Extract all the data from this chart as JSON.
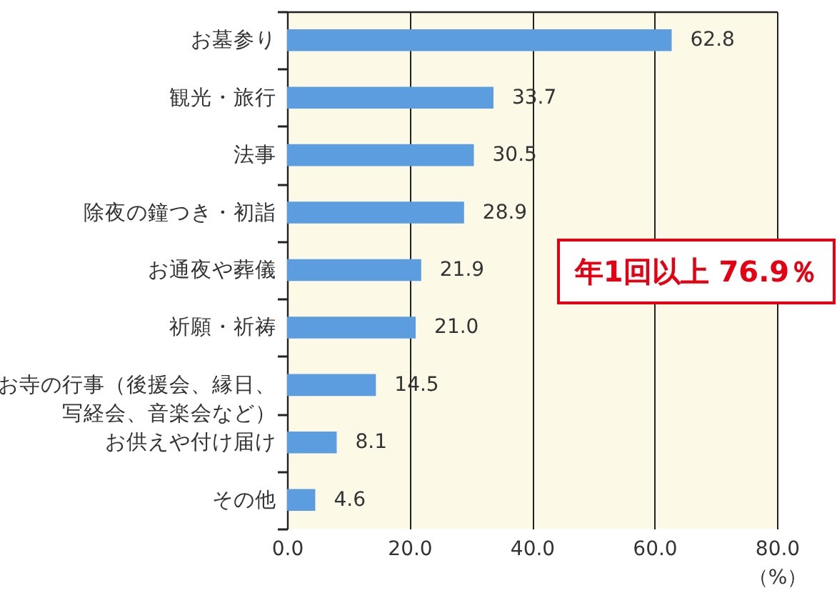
{
  "chart_data": {
    "type": "bar",
    "orientation": "horizontal",
    "categories": [
      "お墓参り",
      "観光・旅行",
      "法事",
      "除夜の鐘つき・初詣",
      "お通夜や葬儀",
      "祈願・祈祷",
      "お寺の行事（後援会、縁日、写経会、音楽会など）",
      "お供えや付け届け",
      "その他"
    ],
    "values": [
      62.8,
      33.7,
      30.5,
      28.9,
      21.9,
      21.0,
      14.5,
      8.1,
      4.6
    ],
    "value_labels": [
      "62.8",
      "33.7",
      "30.5",
      "28.9",
      "21.9",
      "21.0",
      "14.5",
      "8.1",
      "4.6"
    ],
    "color": "#5b9ddf",
    "xlim": [
      0,
      80
    ],
    "xticks": [
      {
        "value": 0,
        "label": "0.0"
      },
      {
        "value": 20,
        "label": "20.0"
      },
      {
        "value": 40,
        "label": "40.0"
      },
      {
        "value": 60,
        "label": "60.0"
      },
      {
        "value": 80,
        "label": "80.0"
      }
    ],
    "xlabel": "（%）",
    "grid": "x",
    "annotations": [
      "年1回以上 76.9％"
    ]
  }
}
